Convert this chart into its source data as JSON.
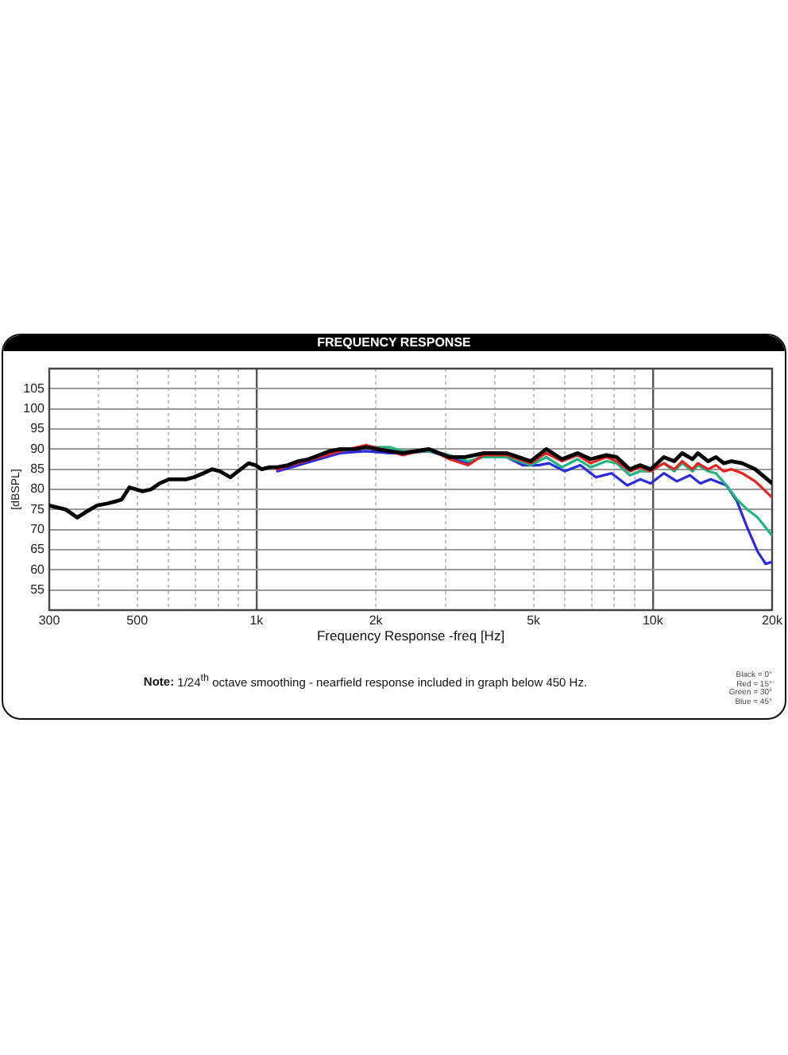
{
  "chart_data": {
    "type": "line",
    "title": "FREQUENCY RESPONSE",
    "xlabel": "Frequency Response -freq [Hz]",
    "ylabel": "[dBSPL]",
    "annotations": [
      "Note: 1/24$^{th}$ octave smoothing - nearfield response included in graph below 450 Hz.",
      "Black = 0°",
      "Red = 15°",
      "Green = 30°",
      "Blue = 45°"
    ],
    "series": [
      {
        "color": "#000000",
        "x": [
          300,
          330,
          353,
          373,
          396,
          421,
          441,
          457,
          478,
          516,
          542,
          570,
          601,
          635,
          664,
          695,
          734,
          773,
          809,
          859,
          899,
          955,
          994,
          1031,
          1079,
          1129,
          1200,
          1275,
          1354,
          1439,
          1530,
          1624,
          1779,
          1891,
          2010,
          2168,
          2338,
          2721,
          3072,
          3365,
          3743,
          4287,
          4917,
          5383,
          5899,
          6457,
          6966,
          7630,
          8110,
          8750,
          9290,
          9880,
          10660,
          11330,
          11860,
          12590,
          12990,
          13790,
          14430,
          15100,
          15810,
          16800,
          18130,
          20000
        ],
        "values": [
          76,
          75,
          73,
          74.5,
          76,
          76.5,
          77,
          77.5,
          80.5,
          79.5,
          80,
          81.5,
          82.5,
          82.5,
          82.5,
          83,
          84,
          85,
          84.5,
          83,
          84.5,
          86.5,
          86,
          85,
          85.5,
          85.5,
          86,
          87,
          87.5,
          88.5,
          89.5,
          90,
          90,
          90.5,
          90,
          89.5,
          89,
          90,
          88,
          88,
          89,
          89,
          87,
          90,
          87.5,
          89,
          87.5,
          88.5,
          88,
          85,
          86,
          85,
          88,
          87,
          89,
          87.5,
          89,
          87,
          88,
          86.5,
          87,
          86.5,
          85,
          81.5
        ]
      },
      {
        "color": "#e52420",
        "x": [
          1129,
          1275,
          1439,
          1624,
          1891,
          2168,
          2338,
          2721,
          3072,
          3416,
          3743,
          4287,
          4917,
          5383,
          5899,
          6457,
          6966,
          7630,
          8110,
          8750,
          9290,
          9880,
          10660,
          11330,
          11860,
          12590,
          12990,
          13790,
          14430,
          15100,
          15810,
          16800,
          18130,
          20000
        ],
        "values": [
          85,
          86.5,
          88,
          89.5,
          91,
          89.5,
          88.5,
          90,
          87.5,
          86,
          88.5,
          88.5,
          86.5,
          89,
          87,
          88.5,
          86.5,
          88,
          87,
          84.5,
          85.5,
          84.5,
          86.5,
          85,
          87,
          85,
          86.5,
          85,
          86,
          84.5,
          85,
          84,
          82,
          78
        ]
      },
      {
        "color": "#1db482",
        "x": [
          2010,
          2168,
          2338,
          2721,
          3072,
          3416,
          3743,
          4287,
          4917,
          5383,
          5899,
          6457,
          6966,
          7630,
          8110,
          8750,
          9290,
          9880,
          10660,
          11330,
          11860,
          12590,
          12990,
          13790,
          14430,
          15340,
          16310,
          17310,
          18400,
          20000
        ],
        "values": [
          90.5,
          90.5,
          89.5,
          89.5,
          88.5,
          87,
          88,
          88,
          86,
          88,
          85.5,
          87.5,
          85.5,
          87,
          86.5,
          83.5,
          84.5,
          84.5,
          86.5,
          84.5,
          86.5,
          84.5,
          86,
          84.5,
          84,
          81,
          77.5,
          75,
          73,
          68.5
        ]
      },
      {
        "color": "#2a2ae0",
        "x": [
          1129,
          1275,
          1439,
          1624,
          1891,
          2168,
          2338,
          2721,
          3072,
          3416,
          3743,
          4287,
          4699,
          5146,
          5470,
          5991,
          6561,
          7186,
          7870,
          8622,
          9290,
          9880,
          10660,
          11497,
          12410,
          13180,
          14000,
          15340,
          16310,
          17310,
          18400,
          19260,
          20000
        ],
        "values": [
          84.5,
          86,
          87.5,
          89,
          89.5,
          89,
          89,
          89.5,
          88,
          86.5,
          88.5,
          88,
          86,
          86,
          86.5,
          84.5,
          86,
          83,
          84,
          81,
          82.5,
          81.5,
          84,
          82,
          83.5,
          81.5,
          82.5,
          81,
          77,
          70.5,
          64.5,
          61.5,
          62
        ]
      }
    ],
    "xlim": [
      300,
      20000
    ],
    "ylim": [
      50,
      110
    ],
    "xticks": [
      300,
      {
        "value": 400,
        "label": null
      },
      500,
      {
        "value": 600,
        "label": null
      },
      {
        "value": 700,
        "label": null
      },
      {
        "value": 800,
        "label": null
      },
      {
        "value": 900,
        "label": null
      },
      {
        "value": 1000,
        "label": "1k"
      },
      {
        "value": 2000,
        "label": "2k"
      },
      {
        "value": 3000,
        "label": null
      },
      {
        "value": 4000,
        "label": null
      },
      {
        "value": 5000,
        "label": "5k"
      },
      {
        "value": 6000,
        "label": null
      },
      {
        "value": 7000,
        "label": null
      },
      {
        "value": 8000,
        "label": null
      },
      {
        "value": 9000,
        "label": null
      },
      {
        "value": 10000,
        "label": "10k"
      },
      {
        "value": 20000,
        "label": "20k"
      }
    ],
    "yticks": [
      55,
      60,
      65,
      70,
      75,
      80,
      85,
      90,
      95,
      100,
      105
    ],
    "log": "x",
    "grid": true,
    "legend": false,
    "marker": "none",
    "line_style": "solid"
  }
}
